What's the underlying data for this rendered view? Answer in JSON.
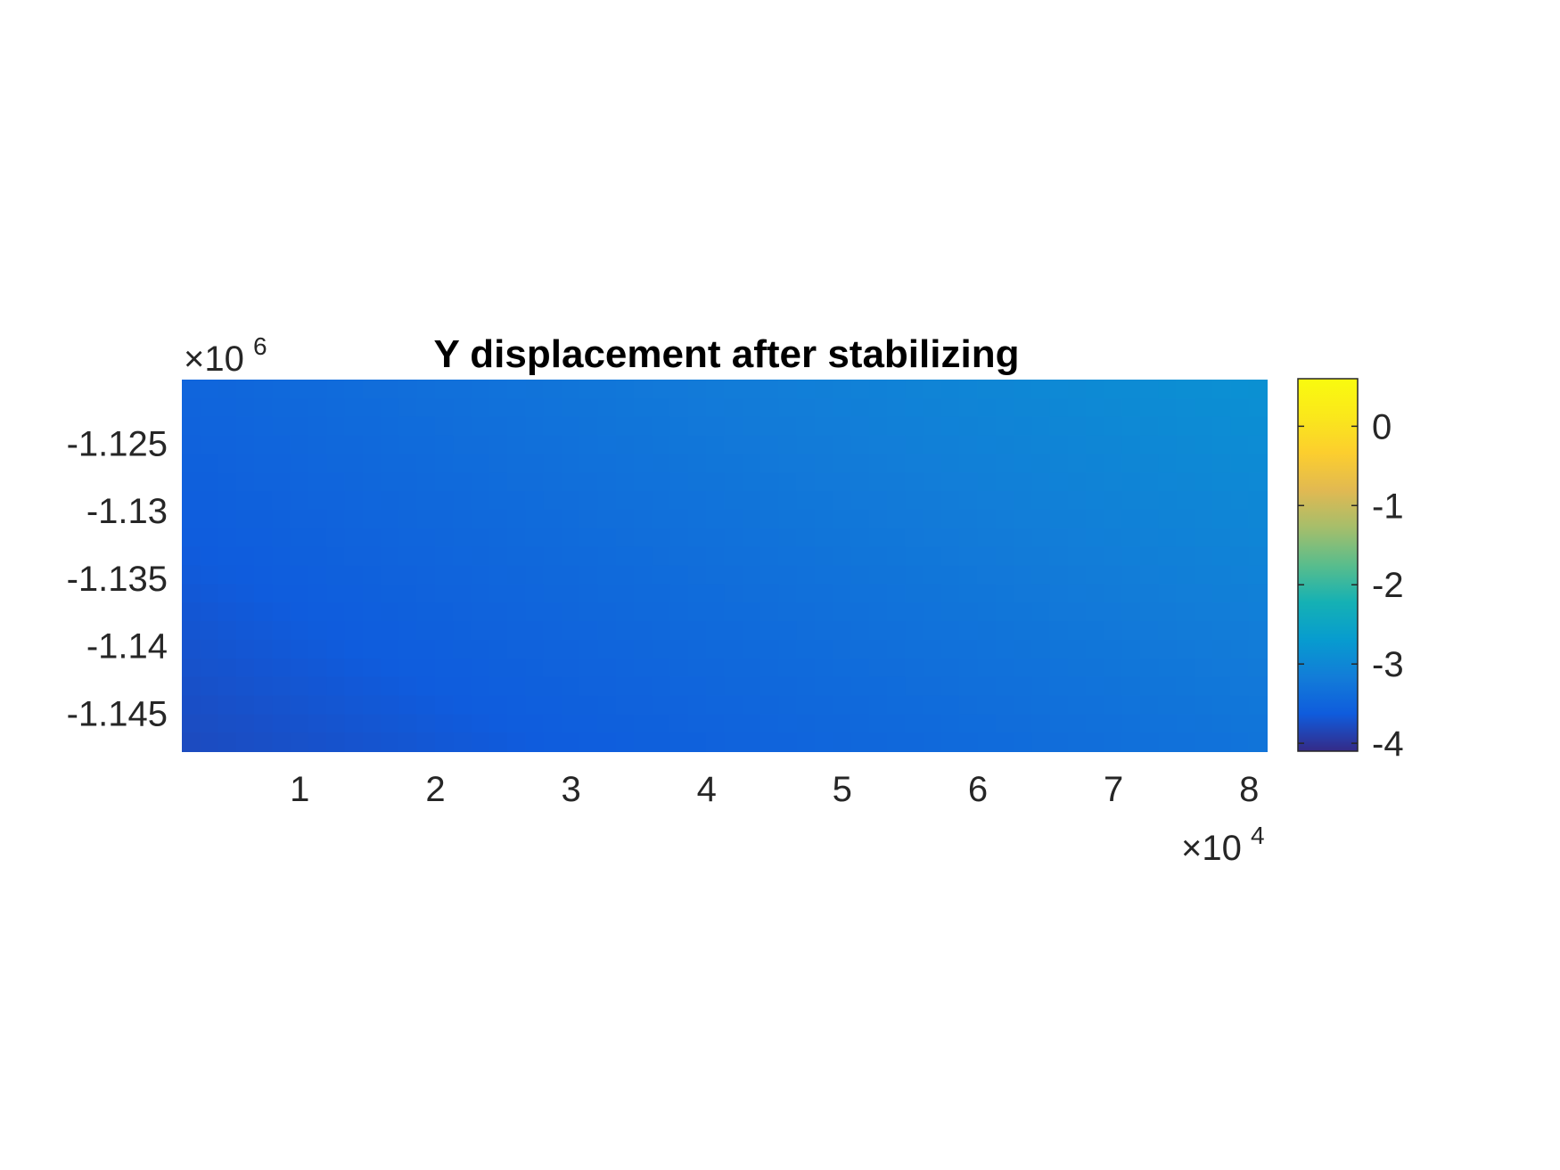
{
  "chart_data": {
    "type": "heatmap",
    "title": "Y displacement after stabilizing",
    "xlabel": "",
    "ylabel": "",
    "x_multiplier": {
      "times": "×10",
      "power": "4"
    },
    "y_multiplier": {
      "times": "×10",
      "power": "6"
    },
    "xlim": [
      0.13,
      8.13
    ],
    "ylim": [
      -1.1478,
      -1.1203
    ],
    "x_ticks": [
      1,
      2,
      3,
      4,
      5,
      6,
      7,
      8
    ],
    "x_tick_labels": [
      "1",
      "2",
      "3",
      "4",
      "5",
      "6",
      "7",
      "8"
    ],
    "y_ticks": [
      -1.125,
      -1.13,
      -1.135,
      -1.14,
      -1.145
    ],
    "y_tick_labels": [
      "-1.125",
      "-1.13",
      "-1.135",
      "-1.14",
      "-1.145"
    ],
    "field": {
      "description_values": "Y displacement at corners of the plotted domain",
      "top_left": -3.5,
      "top_right": -2.85,
      "bottom_left": -3.8,
      "bottom_right": -3.3
    },
    "colorbar": {
      "colormap": "parula",
      "clim": [
        -4.1,
        0.6
      ],
      "ticks": [
        0,
        -1,
        -2,
        -3,
        -4
      ],
      "tick_labels": [
        "0",
        "-1",
        "-2",
        "-3",
        "-4"
      ]
    },
    "grid": false,
    "legend": "none"
  }
}
